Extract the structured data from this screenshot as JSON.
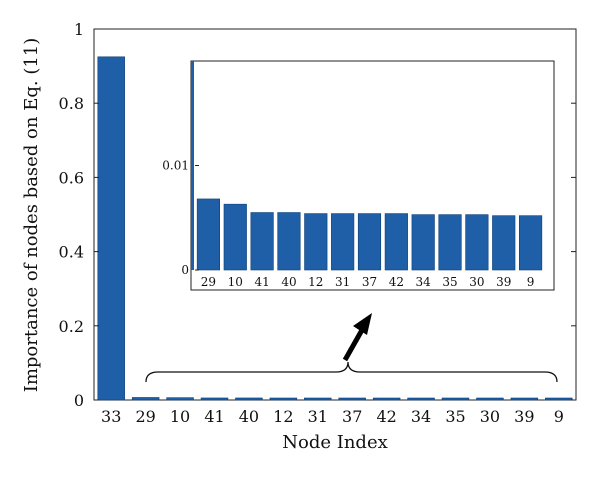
{
  "chart_data": [
    {
      "type": "bar",
      "role": "main",
      "categories": [
        "33",
        "29",
        "10",
        "41",
        "40",
        "12",
        "31",
        "37",
        "42",
        "34",
        "35",
        "30",
        "39",
        "9"
      ],
      "values": [
        0.925,
        0.0068,
        0.0063,
        0.0055,
        0.0055,
        0.0054,
        0.0054,
        0.0054,
        0.0054,
        0.0053,
        0.0053,
        0.0053,
        0.0052,
        0.0052
      ],
      "title": "",
      "xlabel": "Node Index",
      "ylabel": "Importance of nodes based on Eq. (11)",
      "ylim": [
        0,
        1
      ],
      "y_ticks": [
        0,
        0.2,
        0.4,
        0.6,
        0.8,
        1
      ],
      "y_tick_labels": [
        "0",
        "0.2",
        "0.4",
        "0.6",
        "0.8",
        "1"
      ],
      "grid": false,
      "bar_color": "#1f5fa8"
    },
    {
      "type": "bar",
      "role": "inset",
      "categories": [
        "29",
        "10",
        "41",
        "40",
        "12",
        "31",
        "37",
        "42",
        "34",
        "35",
        "30",
        "39",
        "9"
      ],
      "values": [
        0.0068,
        0.0063,
        0.0055,
        0.0055,
        0.0054,
        0.0054,
        0.0054,
        0.0054,
        0.0053,
        0.0053,
        0.0053,
        0.0052,
        0.0052
      ],
      "ylim": [
        0,
        0.02
      ],
      "y_ticks": [
        0,
        0.01
      ],
      "y_tick_labels": [
        "0",
        "0.01"
      ],
      "grid": false,
      "bar_color": "#1f5fa8"
    }
  ]
}
